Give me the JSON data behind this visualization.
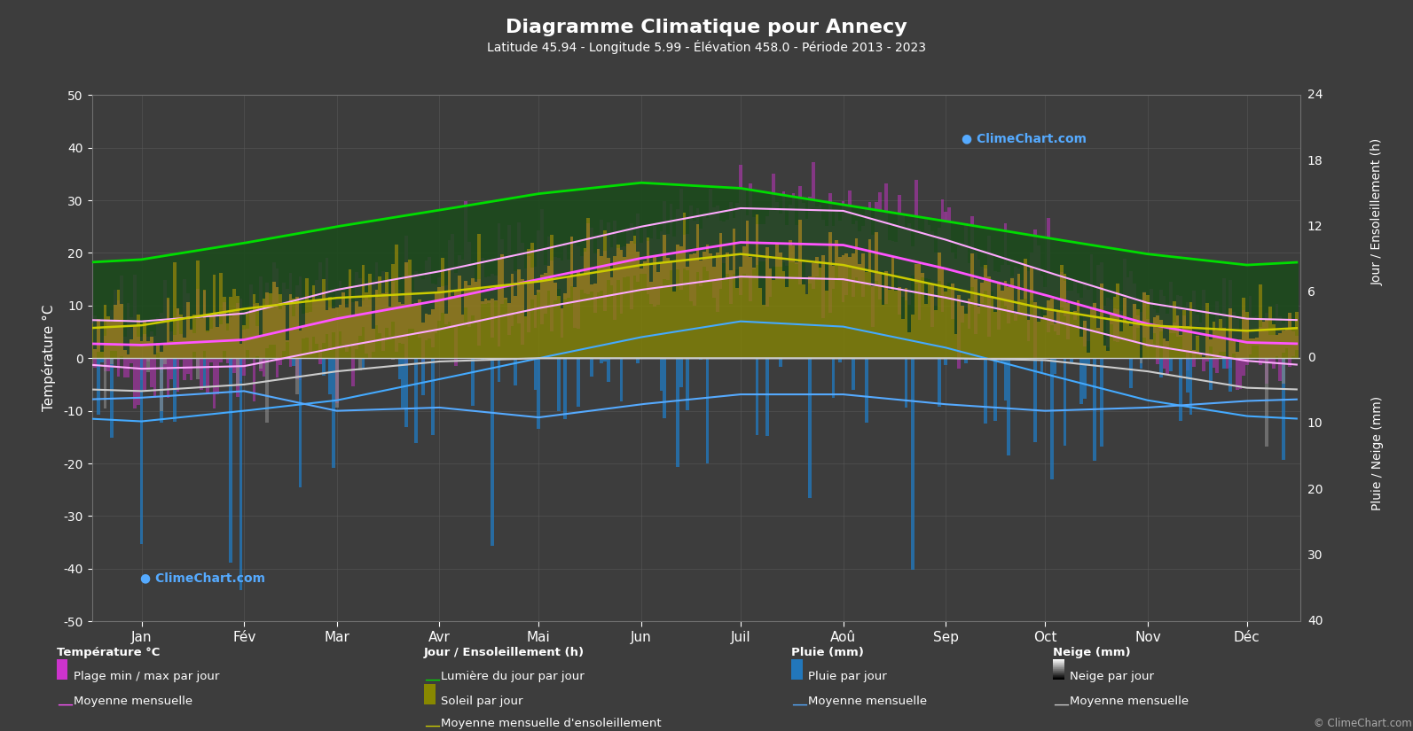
{
  "title": "Diagramme Climatique pour Annecy",
  "subtitle": "Latitude 45.94 - Longitude 5.99 - Élévation 458.0 - Période 2013 - 2023",
  "bg_color": "#3d3d3d",
  "months": [
    "Jan",
    "Fév",
    "Mar",
    "Avr",
    "Mai",
    "Jun",
    "Juil",
    "Aoû",
    "Sep",
    "Oct",
    "Nov",
    "Déc"
  ],
  "month_centers": [
    15,
    46,
    74,
    105,
    135,
    166,
    196,
    227,
    258,
    288,
    319,
    349
  ],
  "temp_ylim": [
    -50,
    50
  ],
  "temp_ticks": [
    -50,
    -40,
    -30,
    -20,
    -10,
    0,
    10,
    20,
    30,
    40,
    50
  ],
  "sun_ylim": [
    0,
    24
  ],
  "sun_ticks": [
    0,
    6,
    12,
    18,
    24
  ],
  "rain_ylim": [
    0,
    40
  ],
  "rain_ticks": [
    0,
    10,
    20,
    30,
    40
  ],
  "temp_mean_monthly": [
    2.5,
    3.5,
    7.5,
    11.0,
    15.0,
    19.0,
    22.0,
    21.5,
    17.0,
    12.0,
    6.5,
    3.0
  ],
  "temp_min_mean": [
    -2.0,
    -1.5,
    2.0,
    5.5,
    9.5,
    13.0,
    15.5,
    15.0,
    11.5,
    7.5,
    2.5,
    -0.5
  ],
  "temp_max_mean": [
    7.0,
    8.5,
    13.0,
    16.5,
    20.5,
    25.0,
    28.5,
    28.0,
    22.5,
    16.5,
    10.5,
    7.5
  ],
  "temp_abs_min": [
    -12,
    -10,
    -8,
    -4,
    0,
    4,
    7,
    6,
    2,
    -3,
    -8,
    -11
  ],
  "temp_abs_max": [
    15,
    18,
    22,
    26,
    30,
    35,
    36,
    35,
    30,
    24,
    18,
    14
  ],
  "daylight_monthly": [
    9.0,
    10.5,
    12.0,
    13.5,
    15.0,
    16.0,
    15.5,
    14.0,
    12.5,
    11.0,
    9.5,
    8.5
  ],
  "sunshine_monthly": [
    3.0,
    4.5,
    5.5,
    6.0,
    7.0,
    8.5,
    9.5,
    8.5,
    6.5,
    4.5,
    3.0,
    2.5
  ],
  "rain_monthly_mean": [
    6.0,
    5.0,
    8.0,
    7.5,
    9.0,
    7.0,
    5.5,
    5.5,
    7.0,
    8.0,
    7.5,
    6.5
  ],
  "snow_monthly_mean": [
    5.0,
    4.0,
    2.0,
    0.5,
    0.0,
    0.0,
    0.0,
    0.0,
    0.0,
    0.3,
    2.0,
    4.5
  ],
  "colors": {
    "background": "#3d3d3d",
    "grid": "#5a5a5a",
    "text": "#ffffff",
    "temp_bar": "#cc33cc",
    "sun_bar": "#888800",
    "daylight_bar": "#224422",
    "rain_bar": "#2277bb",
    "snow_bar": "#888888",
    "mean_temp": "#ff55ff",
    "mean_temp_max": "#ffaaff",
    "mean_temp_min": "#ffaaff",
    "mean_rain": "#55aaff",
    "mean_snow": "#cccccc",
    "daylight_line": "#00dd00",
    "sunshine_line": "#cccc00",
    "zero_line": "#cccccc"
  }
}
